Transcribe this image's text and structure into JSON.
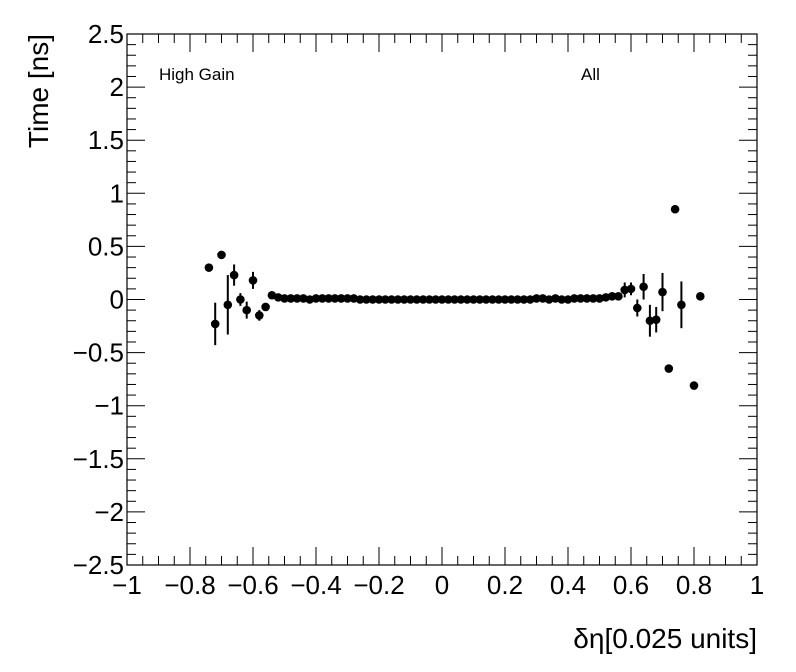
{
  "chart_data": {
    "type": "scatter",
    "xlabel": "δη[0.025 units]",
    "ylabel": "Time [ns]",
    "xlim": [
      -1,
      1
    ],
    "ylim": [
      -2.5,
      2.5
    ],
    "x_ticks": [
      -1,
      -0.8,
      -0.6,
      -0.4,
      -0.2,
      0,
      0.2,
      0.4,
      0.6,
      0.8,
      1
    ],
    "x_tick_labels": [
      "−1",
      "−0.8",
      "−0.6",
      "−0.4",
      "−0.2",
      "0",
      "0.2",
      "0.4",
      "0.6",
      "0.8",
      "1"
    ],
    "y_ticks": [
      -2.5,
      -2,
      -1.5,
      -1,
      -0.5,
      0,
      0.5,
      1,
      1.5,
      2,
      2.5
    ],
    "y_tick_labels": [
      "−2.5",
      "−2",
      "−1.5",
      "−1",
      "−0.5",
      "0",
      "0.5",
      "1",
      "1.5",
      "2",
      "2.5"
    ],
    "annotations": {
      "left": "High Gain",
      "right": "All"
    },
    "grid": false,
    "points": [
      {
        "x": -0.74,
        "y": 0.3,
        "err": 0
      },
      {
        "x": -0.72,
        "y": -0.23,
        "err": 0.2
      },
      {
        "x": -0.7,
        "y": 0.42,
        "err": 0
      },
      {
        "x": -0.68,
        "y": -0.05,
        "err": 0.28
      },
      {
        "x": -0.66,
        "y": 0.23,
        "err": 0.1
      },
      {
        "x": -0.64,
        "y": 0.0,
        "err": 0.06
      },
      {
        "x": -0.62,
        "y": -0.1,
        "err": 0.08
      },
      {
        "x": -0.6,
        "y": 0.18,
        "err": 0.08
      },
      {
        "x": -0.58,
        "y": -0.15,
        "err": 0.05
      },
      {
        "x": -0.56,
        "y": -0.07,
        "err": 0.03
      },
      {
        "x": -0.54,
        "y": 0.04,
        "err": 0
      },
      {
        "x": -0.52,
        "y": 0.02,
        "err": 0
      },
      {
        "x": -0.5,
        "y": 0.01,
        "err": 0
      },
      {
        "x": -0.48,
        "y": 0.01,
        "err": 0
      },
      {
        "x": -0.46,
        "y": 0.01,
        "err": 0
      },
      {
        "x": -0.44,
        "y": 0.01,
        "err": 0
      },
      {
        "x": -0.42,
        "y": 0.0,
        "err": 0
      },
      {
        "x": -0.4,
        "y": 0.01,
        "err": 0
      },
      {
        "x": -0.38,
        "y": 0.01,
        "err": 0
      },
      {
        "x": -0.36,
        "y": 0.01,
        "err": 0
      },
      {
        "x": -0.34,
        "y": 0.01,
        "err": 0
      },
      {
        "x": -0.32,
        "y": 0.01,
        "err": 0
      },
      {
        "x": -0.3,
        "y": 0.01,
        "err": 0
      },
      {
        "x": -0.28,
        "y": 0.01,
        "err": 0
      },
      {
        "x": -0.26,
        "y": 0.0,
        "err": 0
      },
      {
        "x": -0.24,
        "y": 0.0,
        "err": 0
      },
      {
        "x": -0.22,
        "y": 0.0,
        "err": 0
      },
      {
        "x": -0.2,
        "y": 0.0,
        "err": 0
      },
      {
        "x": -0.18,
        "y": 0.0,
        "err": 0
      },
      {
        "x": -0.16,
        "y": 0.0,
        "err": 0
      },
      {
        "x": -0.14,
        "y": 0.0,
        "err": 0
      },
      {
        "x": -0.12,
        "y": 0.0,
        "err": 0
      },
      {
        "x": -0.1,
        "y": 0.0,
        "err": 0
      },
      {
        "x": -0.08,
        "y": 0.0,
        "err": 0
      },
      {
        "x": -0.06,
        "y": 0.0,
        "err": 0
      },
      {
        "x": -0.04,
        "y": 0.0,
        "err": 0
      },
      {
        "x": -0.02,
        "y": 0.0,
        "err": 0
      },
      {
        "x": 0.0,
        "y": 0.0,
        "err": 0
      },
      {
        "x": 0.02,
        "y": 0.0,
        "err": 0
      },
      {
        "x": 0.04,
        "y": 0.0,
        "err": 0
      },
      {
        "x": 0.06,
        "y": 0.0,
        "err": 0
      },
      {
        "x": 0.08,
        "y": 0.0,
        "err": 0
      },
      {
        "x": 0.1,
        "y": 0.0,
        "err": 0
      },
      {
        "x": 0.12,
        "y": 0.0,
        "err": 0
      },
      {
        "x": 0.14,
        "y": 0.0,
        "err": 0
      },
      {
        "x": 0.16,
        "y": 0.0,
        "err": 0
      },
      {
        "x": 0.18,
        "y": 0.0,
        "err": 0
      },
      {
        "x": 0.2,
        "y": 0.0,
        "err": 0
      },
      {
        "x": 0.22,
        "y": 0.0,
        "err": 0
      },
      {
        "x": 0.24,
        "y": 0.0,
        "err": 0
      },
      {
        "x": 0.26,
        "y": 0.0,
        "err": 0
      },
      {
        "x": 0.28,
        "y": 0.0,
        "err": 0
      },
      {
        "x": 0.3,
        "y": 0.01,
        "err": 0
      },
      {
        "x": 0.32,
        "y": 0.01,
        "err": 0
      },
      {
        "x": 0.34,
        "y": 0.0,
        "err": 0
      },
      {
        "x": 0.36,
        "y": 0.01,
        "err": 0
      },
      {
        "x": 0.38,
        "y": 0.0,
        "err": 0
      },
      {
        "x": 0.4,
        "y": 0.0,
        "err": 0
      },
      {
        "x": 0.42,
        "y": 0.01,
        "err": 0
      },
      {
        "x": 0.44,
        "y": 0.01,
        "err": 0
      },
      {
        "x": 0.46,
        "y": 0.01,
        "err": 0
      },
      {
        "x": 0.48,
        "y": 0.01,
        "err": 0
      },
      {
        "x": 0.5,
        "y": 0.01,
        "err": 0
      },
      {
        "x": 0.52,
        "y": 0.02,
        "err": 0
      },
      {
        "x": 0.54,
        "y": 0.03,
        "err": 0
      },
      {
        "x": 0.56,
        "y": 0.03,
        "err": 0.03
      },
      {
        "x": 0.58,
        "y": 0.09,
        "err": 0.07
      },
      {
        "x": 0.6,
        "y": 0.1,
        "err": 0.06
      },
      {
        "x": 0.62,
        "y": -0.08,
        "err": 0.08
      },
      {
        "x": 0.64,
        "y": 0.12,
        "err": 0.12
      },
      {
        "x": 0.66,
        "y": -0.2,
        "err": 0.15
      },
      {
        "x": 0.68,
        "y": -0.19,
        "err": 0.12
      },
      {
        "x": 0.7,
        "y": 0.07,
        "err": 0.18
      },
      {
        "x": 0.72,
        "y": -0.65,
        "err": 0
      },
      {
        "x": 0.74,
        "y": 0.85,
        "err": 0
      },
      {
        "x": 0.76,
        "y": -0.05,
        "err": 0.22
      },
      {
        "x": 0.8,
        "y": -0.81,
        "err": 0
      },
      {
        "x": 0.82,
        "y": 0.03,
        "err": 0
      }
    ]
  }
}
